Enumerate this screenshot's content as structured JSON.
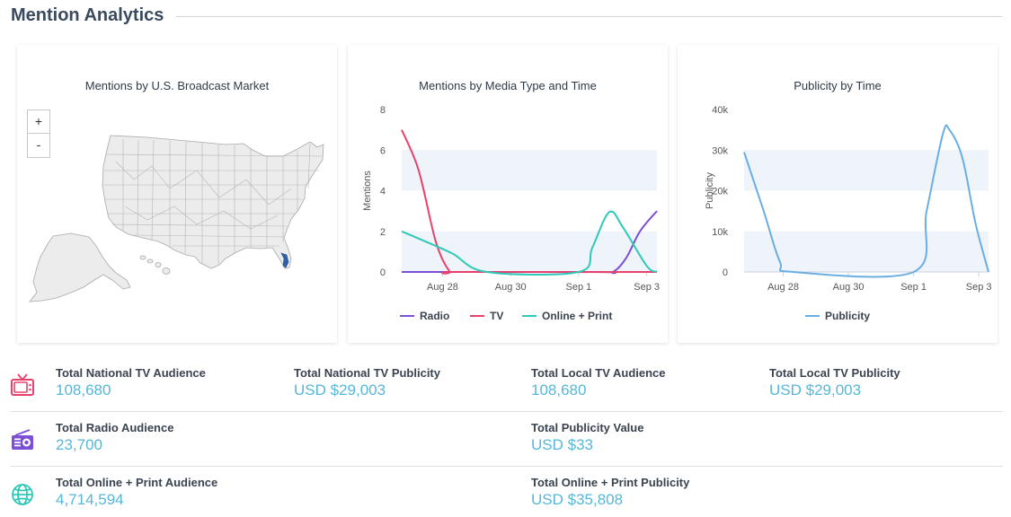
{
  "page": {
    "title": "Mention Analytics"
  },
  "map_card": {
    "title": "Mentions by U.S. Broadcast Market",
    "zoom_in": "+",
    "zoom_out": "-"
  },
  "chart_data": [
    {
      "type": "line",
      "title": "Mentions by Media Type and Time",
      "ylabel": "Mentions",
      "xlabel": "",
      "ylim": [
        0,
        8
      ],
      "yticks": [
        "0",
        "2",
        "4",
        "6",
        "8"
      ],
      "xticks": [
        {
          "label": "Aug 28",
          "day": 28
        },
        {
          "label": "Aug 30",
          "day": 30
        },
        {
          "label": "Sep 1",
          "day": 32
        },
        {
          "label": "Sep 3",
          "day": 34
        }
      ],
      "legend": "bottom",
      "series": [
        {
          "name": "Radio",
          "color": "#7b4fd6",
          "points": [
            [
              26.8,
              0
            ],
            [
              32.5,
              0
            ],
            [
              33.0,
              0
            ],
            [
              33.4,
              0.7
            ],
            [
              33.8,
              2.0
            ],
            [
              34.3,
              3.0
            ]
          ]
        },
        {
          "name": "TV",
          "color": "#e8416b",
          "points": [
            [
              26.8,
              7
            ],
            [
              27.3,
              5
            ],
            [
              27.8,
              1.5
            ],
            [
              28.2,
              0.05
            ],
            [
              28.5,
              0
            ],
            [
              34.3,
              0
            ]
          ]
        },
        {
          "name": "Online + Print",
          "color": "#2ec8b8",
          "points": [
            [
              26.8,
              2
            ],
            [
              27.5,
              1.5
            ],
            [
              28.3,
              0.9
            ],
            [
              29.3,
              0
            ],
            [
              32.0,
              0
            ],
            [
              32.4,
              1.2
            ],
            [
              32.9,
              2.95
            ],
            [
              33.3,
              2.2
            ],
            [
              34.0,
              0.3
            ],
            [
              34.3,
              0
            ]
          ]
        }
      ]
    },
    {
      "type": "line",
      "title": "Publicity by Time",
      "ylabel": "Publicity",
      "xlabel": "",
      "ylim": [
        0,
        40000
      ],
      "yticks": [
        "0",
        "10k",
        "20k",
        "30k",
        "40k"
      ],
      "xticks": [
        {
          "label": "Aug 28",
          "day": 28
        },
        {
          "label": "Aug 30",
          "day": 30
        },
        {
          "label": "Sep 1",
          "day": 32
        },
        {
          "label": "Sep 3",
          "day": 34
        }
      ],
      "legend": "bottom",
      "series": [
        {
          "name": "Publicity",
          "color": "#6aaee3",
          "points": [
            [
              26.8,
              29500
            ],
            [
              27.4,
              15000
            ],
            [
              27.9,
              2500
            ],
            [
              28.3,
              0
            ],
            [
              32.0,
              0
            ],
            [
              32.4,
              15000
            ],
            [
              32.9,
              34000
            ],
            [
              33.1,
              35000
            ],
            [
              33.5,
              28000
            ],
            [
              33.9,
              12000
            ],
            [
              34.3,
              0
            ]
          ]
        }
      ]
    }
  ],
  "stats": {
    "national_tv_audience": {
      "label": "Total National TV Audience",
      "value": "108,680"
    },
    "national_tv_publicity": {
      "label": "Total National TV Publicity",
      "value": "USD $29,003"
    },
    "local_tv_audience": {
      "label": "Total Local TV Audience",
      "value": "108,680"
    },
    "local_tv_publicity": {
      "label": "Total Local TV Publicity",
      "value": "USD $29,003"
    },
    "radio_audience": {
      "label": "Total Radio Audience",
      "value": "23,700"
    },
    "publicity_value": {
      "label": "Total Publicity Value",
      "value": "USD $33"
    },
    "online_print_audience": {
      "label": "Total Online + Print Audience",
      "value": "4,714,594"
    },
    "online_print_publicity": {
      "label": "Total Online + Print Publicity",
      "value": "USD $35,808"
    }
  },
  "icons": {
    "tv": "tv-icon",
    "radio": "radio-icon",
    "online": "globe-icon"
  },
  "colors": {
    "tv_icon": "#e8416b",
    "radio_icon": "#7b4fd6",
    "globe_icon": "#2ec8b8",
    "value_text": "#56b7d9",
    "band": "#eef4fa"
  }
}
